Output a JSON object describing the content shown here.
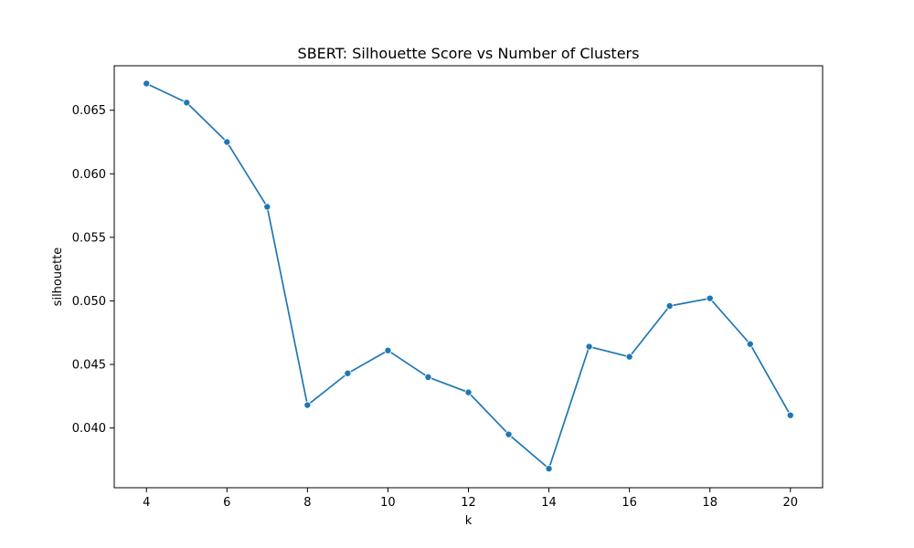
{
  "chart_data": {
    "type": "line",
    "title": "SBERT: Silhouette Score vs Number of Clusters",
    "xlabel": "k",
    "ylabel": "silhouette",
    "xlim": [
      3.2,
      20.8
    ],
    "ylim": [
      0.0353,
      0.0685
    ],
    "x_ticks": [
      4,
      6,
      8,
      10,
      12,
      14,
      16,
      18,
      20
    ],
    "y_ticks": [
      0.04,
      0.045,
      0.05,
      0.055,
      0.06,
      0.065
    ],
    "x_tick_labels": [
      "4",
      "6",
      "8",
      "10",
      "12",
      "14",
      "16",
      "18",
      "20"
    ],
    "y_tick_labels": [
      "0.040",
      "0.045",
      "0.050",
      "0.055",
      "0.060",
      "0.065"
    ],
    "grid": false,
    "marker": "circle",
    "series": [
      {
        "color": "#1f77b4",
        "x": [
          4,
          5,
          6,
          7,
          8,
          9,
          10,
          11,
          12,
          13,
          14,
          15,
          16,
          17,
          18,
          19,
          20
        ],
        "y": [
          0.0671,
          0.0656,
          0.0625,
          0.0574,
          0.0418,
          0.0443,
          0.0461,
          0.044,
          0.0428,
          0.0395,
          0.0368,
          0.0464,
          0.0456,
          0.0496,
          0.0502,
          0.0466,
          0.041
        ]
      }
    ]
  }
}
